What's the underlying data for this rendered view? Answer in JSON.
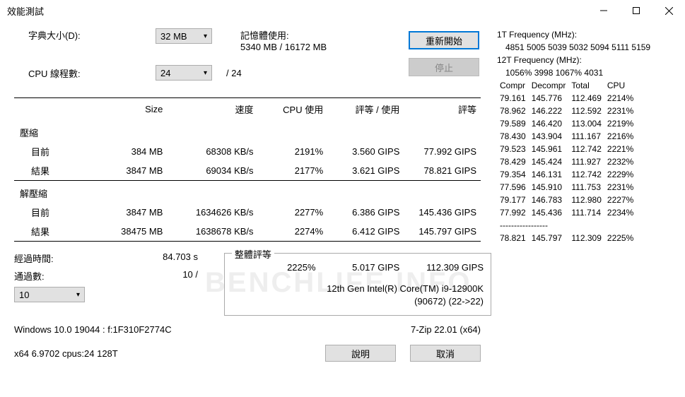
{
  "window": {
    "title": "效能測試"
  },
  "top": {
    "dict_label": "字典大小(D):",
    "dict_value": "32 MB",
    "mem_label": "記憶體使用:",
    "mem_value": "5340 MB / 16172 MB",
    "threads_label": "CPU 線程數:",
    "threads_value": "24",
    "threads_total": "/ 24",
    "restart": "重新開始",
    "stop": "停止"
  },
  "table": {
    "headers": {
      "size": "Size",
      "speed": "速度",
      "cpu": "CPU 使用",
      "ru": "評等 / 使用",
      "rating": "評等"
    },
    "compress": {
      "title": "壓縮",
      "current_label": "目前",
      "current": {
        "size": "384 MB",
        "speed": "68308 KB/s",
        "cpu": "2191%",
        "ru": "3.560 GIPS",
        "rating": "77.992 GIPS"
      },
      "result_label": "結果",
      "result": {
        "size": "3847 MB",
        "speed": "69034 KB/s",
        "cpu": "2177%",
        "ru": "3.621 GIPS",
        "rating": "78.821 GIPS"
      }
    },
    "decompress": {
      "title": "解壓縮",
      "current_label": "目前",
      "current": {
        "size": "3847 MB",
        "speed": "1634626 KB/s",
        "cpu": "2277%",
        "ru": "6.386 GIPS",
        "rating": "145.436 GIPS"
      },
      "result_label": "結果",
      "result": {
        "size": "38475 MB",
        "speed": "1638678 KB/s",
        "cpu": "2274%",
        "ru": "6.412 GIPS",
        "rating": "145.797 GIPS"
      }
    }
  },
  "bottom": {
    "elapsed_label": "經過時間:",
    "elapsed_value": "84.703 s",
    "passes_label": "通過數:",
    "passes_value": "10 /",
    "passes_select": "10"
  },
  "overall": {
    "legend": "整體評等",
    "cpu": "2225%",
    "ru": "5.017 GIPS",
    "rating": "112.309 GIPS",
    "cpu_name1": "12th Gen Intel(R) Core(TM) i9-12900K",
    "cpu_name2": "(90672) (22->22)"
  },
  "footer": {
    "os": "Windows 10.0 19044 : f:1F310F2774C",
    "zip": "7-Zip 22.01 (x64)",
    "build": "x64 6.9702 cpus:24 128T",
    "help": "說明",
    "cancel": "取消"
  },
  "right": {
    "t1_label": "1T Frequency (MHz):",
    "t1_val": "4851 5005 5039 5032 5094 5111 5159",
    "t12_label": "12T Frequency (MHz):",
    "t12_val": "1056% 3998 1067% 4031",
    "hdr": {
      "c": "Compr",
      "d": "Decompr",
      "t": "Total",
      "cpu": "CPU"
    },
    "rows": [
      [
        "79.161",
        "145.776",
        "112.469",
        "2214%"
      ],
      [
        "78.962",
        "146.222",
        "112.592",
        "2231%"
      ],
      [
        "79.589",
        "146.420",
        "113.004",
        "2219%"
      ],
      [
        "78.430",
        "143.904",
        "111.167",
        "2216%"
      ],
      [
        "79.523",
        "145.961",
        "112.742",
        "2221%"
      ],
      [
        "78.429",
        "145.424",
        "111.927",
        "2232%"
      ],
      [
        "79.354",
        "146.131",
        "112.742",
        "2229%"
      ],
      [
        "77.596",
        "145.910",
        "111.753",
        "2231%"
      ],
      [
        "79.177",
        "146.783",
        "112.980",
        "2227%"
      ],
      [
        "77.992",
        "145.436",
        "111.714",
        "2234%"
      ]
    ],
    "sep": "-----------------",
    "total": [
      "78.821",
      "145.797",
      "112.309",
      "2225%"
    ]
  },
  "watermark": "BENCHLIFE.INFO"
}
